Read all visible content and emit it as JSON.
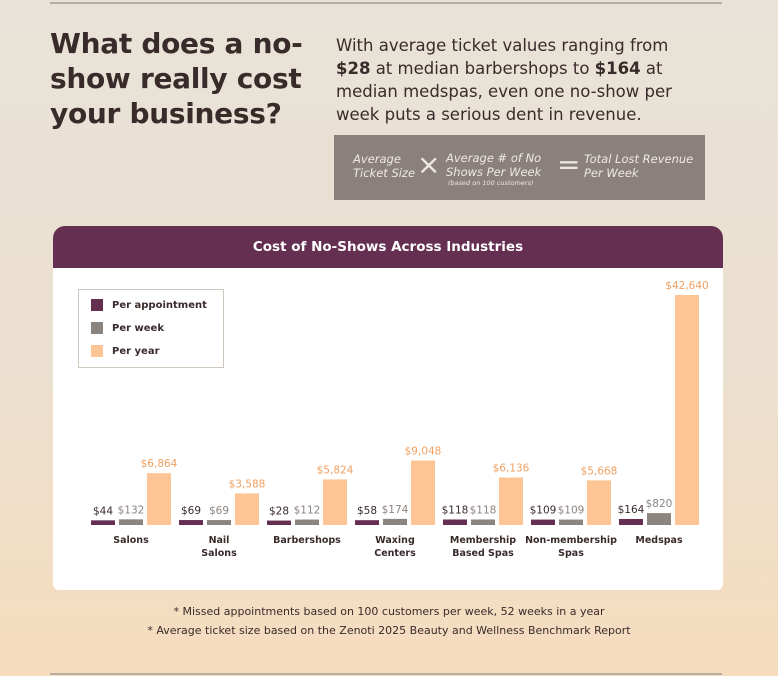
{
  "heading": "What does a no-show really cost your business?",
  "intro": {
    "pre": "With average ticket values ranging from ",
    "low": "$28",
    "mid": " at median barbershops to ",
    "high": "$164",
    "post": " at median medspas, even one no-show per week puts a serious dent in revenue."
  },
  "formula": {
    "term1": "Average Ticket Size",
    "times": "×",
    "term2": "Average # of No Shows Per Week",
    "term2_note": "(based on 100 customers)",
    "equals": "=",
    "result": "Total Lost Revenue Per Week"
  },
  "colors": {
    "per_appointment": "#652f52",
    "per_week": "#8b847f",
    "per_year": "#fdc595",
    "header": "#652f52"
  },
  "chart_data": {
    "type": "bar",
    "title": "Cost of No-Shows Across Industries",
    "categories": [
      "Salons",
      "Nail Salons",
      "Barbershops",
      "Waxing Centers",
      "Membership Based Spas",
      "Non-membership Spas",
      "Medspas"
    ],
    "series": [
      {
        "name": "Per appointment",
        "values": [
          44,
          69,
          28,
          58,
          118,
          109,
          164
        ],
        "labels": [
          "$44",
          "$69",
          "$28",
          "$58",
          "$118",
          "$109",
          "$164"
        ]
      },
      {
        "name": "Per week",
        "values": [
          132,
          69,
          112,
          174,
          118,
          109,
          820
        ],
        "labels": [
          "$132",
          "$69",
          "$112",
          "$174",
          "$118",
          "$109",
          "$820"
        ]
      },
      {
        "name": "Per year",
        "values": [
          6864,
          3588,
          5824,
          9048,
          6136,
          5668,
          42640
        ],
        "labels": [
          "$6,864",
          "$3,588",
          "$5,824",
          "$9,048",
          "$6,136",
          "$5,668",
          "$42,640"
        ]
      }
    ],
    "legend": "top-left",
    "grid": false,
    "yaxis_shown": false
  },
  "footnotes": [
    "* Missed appointments based on 100 customers per week, 52 weeks in a year",
    "* Average ticket size based on the Zenoti 2025 Beauty and Wellness Benchmark Report"
  ]
}
